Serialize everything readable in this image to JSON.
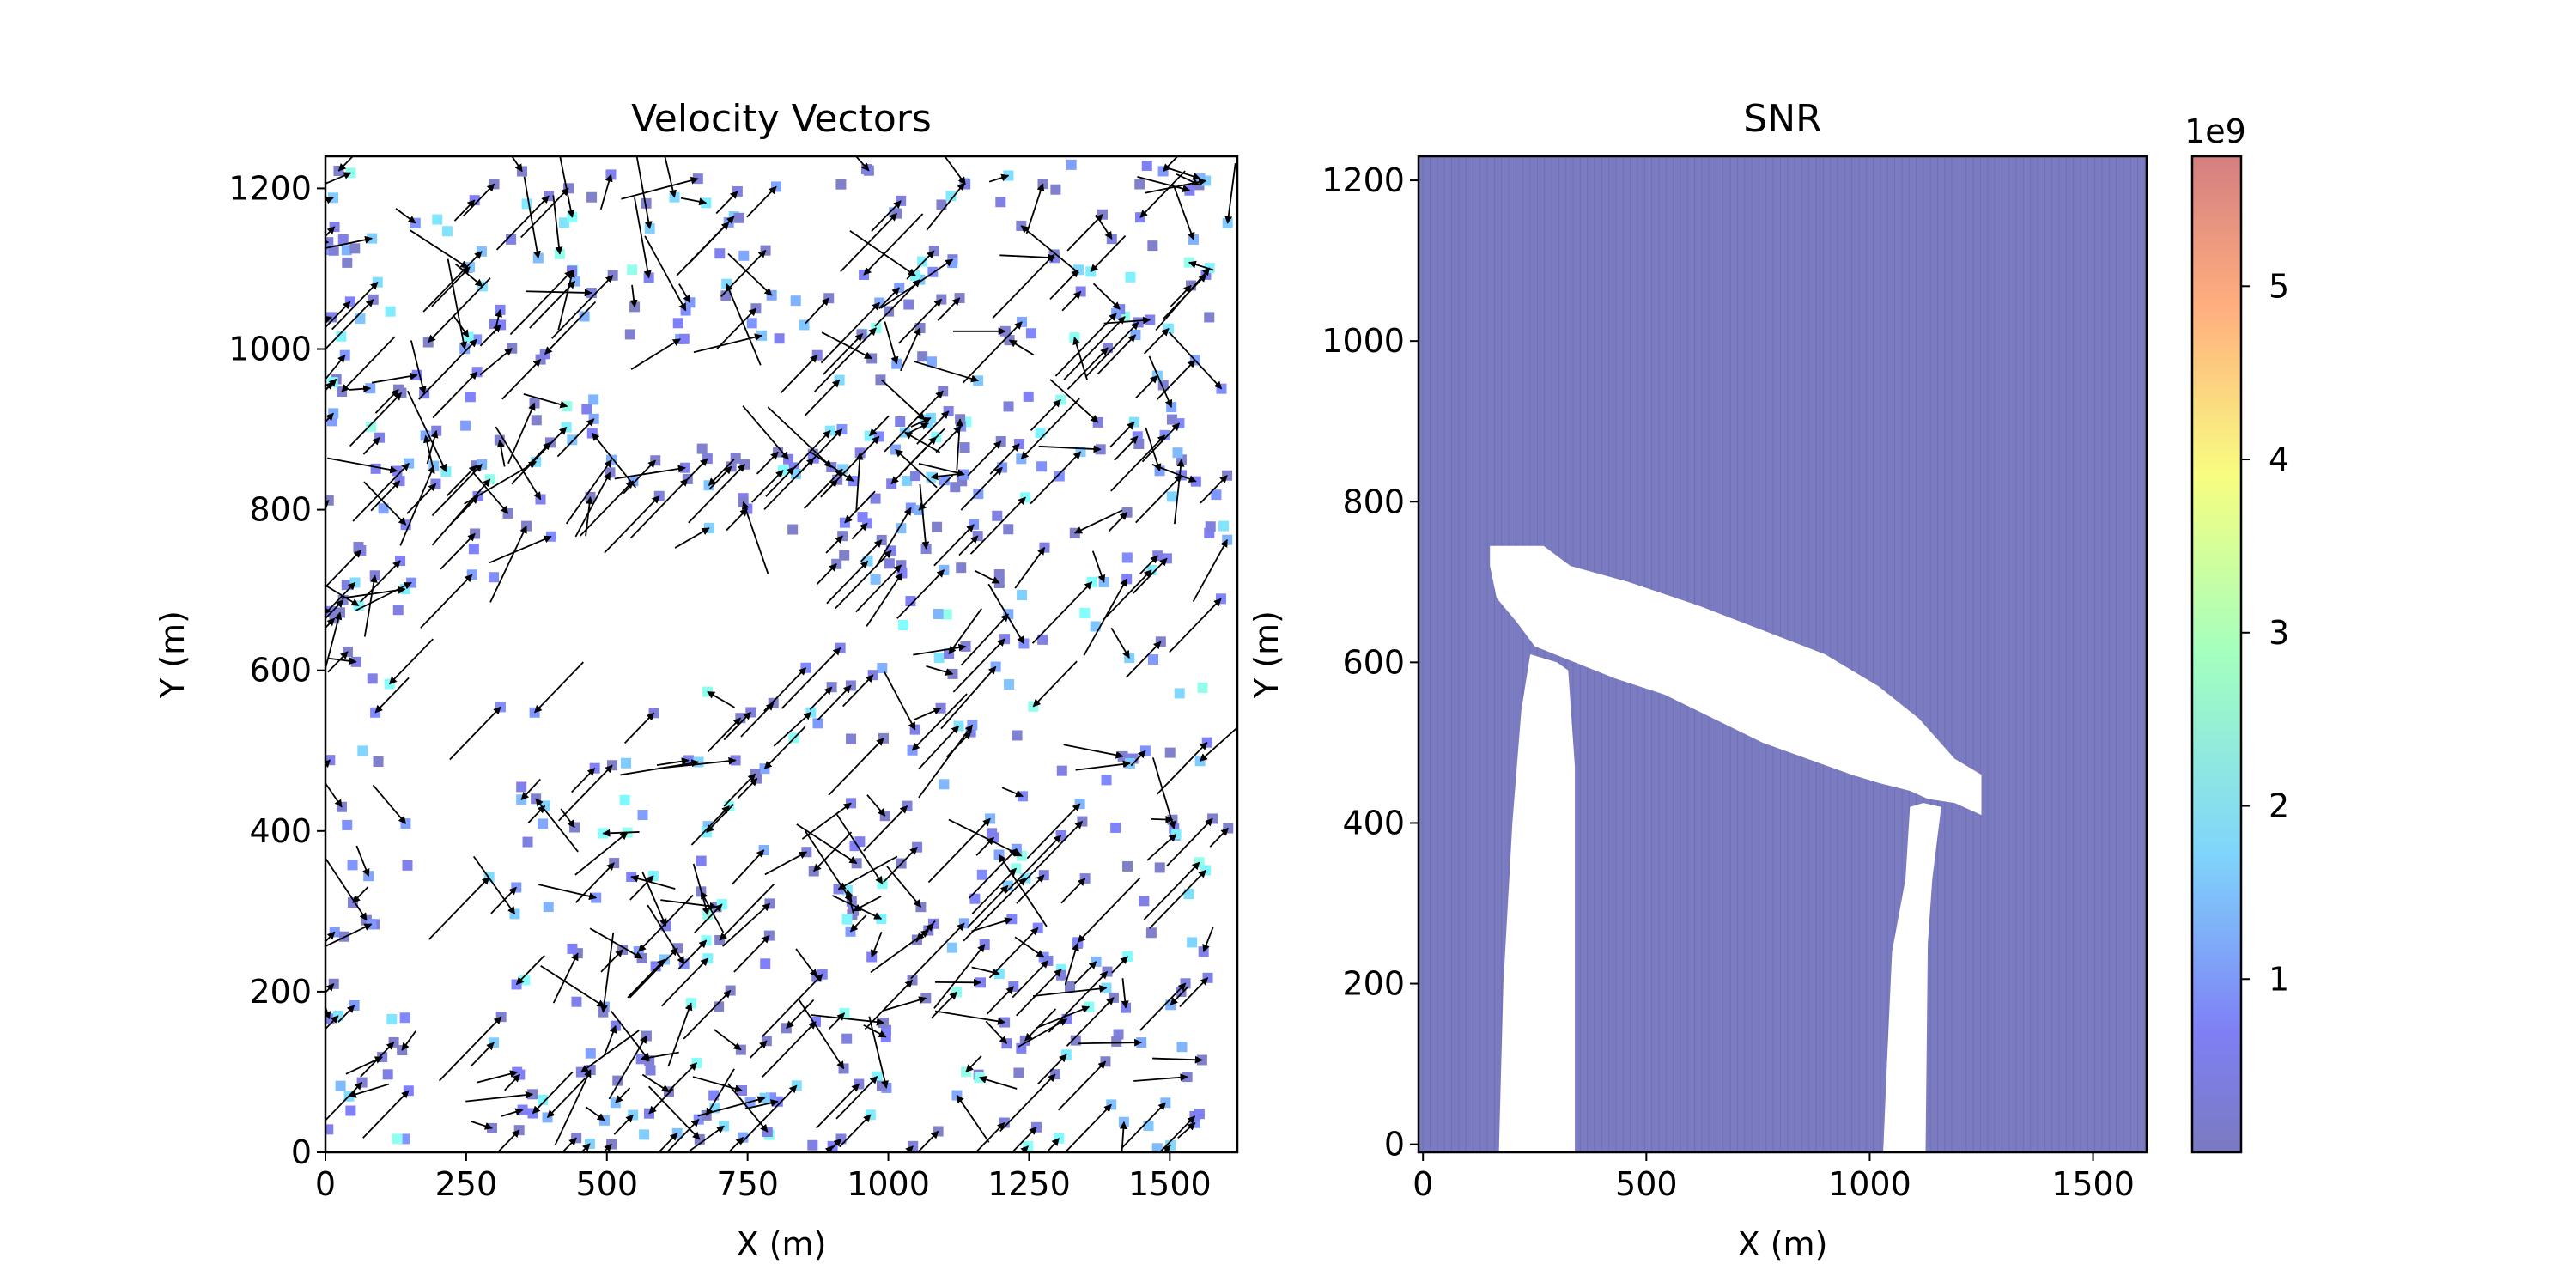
{
  "chart_data": [
    {
      "type": "quiver",
      "title": "Velocity Vectors",
      "xlabel": "X (m)",
      "ylabel": "Y (m)",
      "xlim": [
        0,
        1620
      ],
      "ylim": [
        0,
        1240
      ],
      "xticks": [
        0,
        250,
        500,
        750,
        1000,
        1250,
        1500
      ],
      "yticks": [
        0,
        200,
        400,
        600,
        800,
        1000,
        1200
      ],
      "grid_spacing_m": 16,
      "marker_cmap": "jet",
      "marker_alpha": 0.5,
      "arrow_color": "#000000",
      "empty_regions_description_only_for_rendering": false
    },
    {
      "type": "heatmap",
      "title": "SNR",
      "xlabel": "X (m)",
      "ylabel": "Y (m)",
      "xlim": [
        -10,
        1620
      ],
      "ylim": [
        -10,
        1230
      ],
      "xticks": [
        0,
        500,
        1000,
        1500
      ],
      "yticks": [
        0,
        200,
        400,
        600,
        800,
        1000,
        1200
      ],
      "cmap": "jet",
      "alpha": 0.5,
      "dominant_value_color": "#7b7bc2",
      "masked_region": "white (no data)",
      "colorbar": {
        "offset_label": "1e9",
        "ticks": [
          1,
          2,
          3,
          4,
          5
        ],
        "range": [
          0.0,
          5.75
        ]
      }
    }
  ]
}
